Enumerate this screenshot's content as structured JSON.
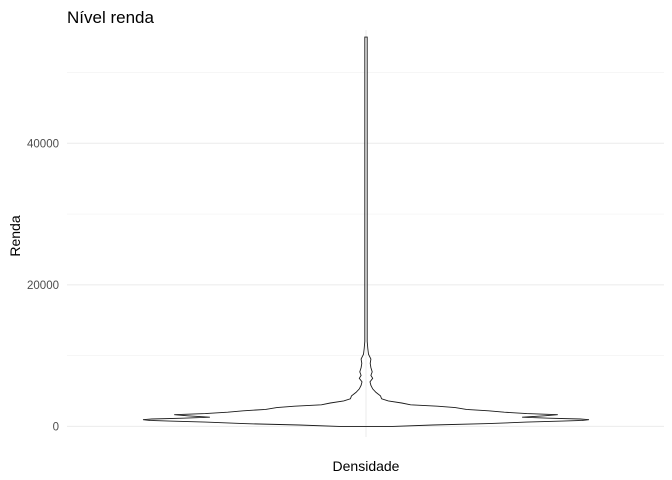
{
  "chart_data": {
    "type": "violin",
    "title": "Nível renda",
    "xlabel": "Densidade",
    "ylabel": "Renda",
    "ylim": [
      -1500,
      56000
    ],
    "yticks": [
      0,
      20000,
      40000
    ],
    "ytick_labels": [
      "0",
      "20000",
      "40000"
    ],
    "grid": true,
    "legend": "none",
    "colors": {
      "outline": "#1a1a1a",
      "grid": "#ebebeb",
      "background": "#ffffff"
    },
    "series": [
      {
        "values": [
          [
            0,
            0.12
          ],
          [
            200,
            0.3
          ],
          [
            400,
            0.55
          ],
          [
            600,
            0.72
          ],
          [
            750,
            0.88
          ],
          [
            850,
            0.97
          ],
          [
            950,
            1.0
          ],
          [
            1050,
            0.96
          ],
          [
            1150,
            0.82
          ],
          [
            1300,
            0.7
          ],
          [
            1500,
            0.8
          ],
          [
            1650,
            0.86
          ],
          [
            1800,
            0.72
          ],
          [
            2000,
            0.62
          ],
          [
            2200,
            0.55
          ],
          [
            2400,
            0.45
          ],
          [
            2650,
            0.4
          ],
          [
            2850,
            0.32
          ],
          [
            3050,
            0.2
          ],
          [
            3300,
            0.16
          ],
          [
            3600,
            0.1
          ],
          [
            3900,
            0.07
          ],
          [
            4300,
            0.065
          ],
          [
            4800,
            0.045
          ],
          [
            5300,
            0.03
          ],
          [
            5800,
            0.022
          ],
          [
            6300,
            0.018
          ],
          [
            6800,
            0.03
          ],
          [
            7200,
            0.022
          ],
          [
            7700,
            0.028
          ],
          [
            8300,
            0.022
          ],
          [
            8900,
            0.019
          ],
          [
            9500,
            0.022
          ],
          [
            10200,
            0.011
          ],
          [
            11000,
            0.008
          ],
          [
            12000,
            0.005
          ],
          [
            13000,
            0.003
          ],
          [
            14000,
            0.005
          ],
          [
            15000,
            0.002
          ],
          [
            16000,
            0.002
          ],
          [
            18000,
            0.0012
          ],
          [
            20000,
            0.001
          ],
          [
            25000,
            0.0015
          ],
          [
            30000,
            0.0015
          ],
          [
            35000,
            0.0008
          ],
          [
            40000,
            0.0012
          ],
          [
            46000,
            0.0012
          ],
          [
            50000,
            0.0005
          ],
          [
            55000,
            0.0004
          ]
        ]
      }
    ]
  }
}
